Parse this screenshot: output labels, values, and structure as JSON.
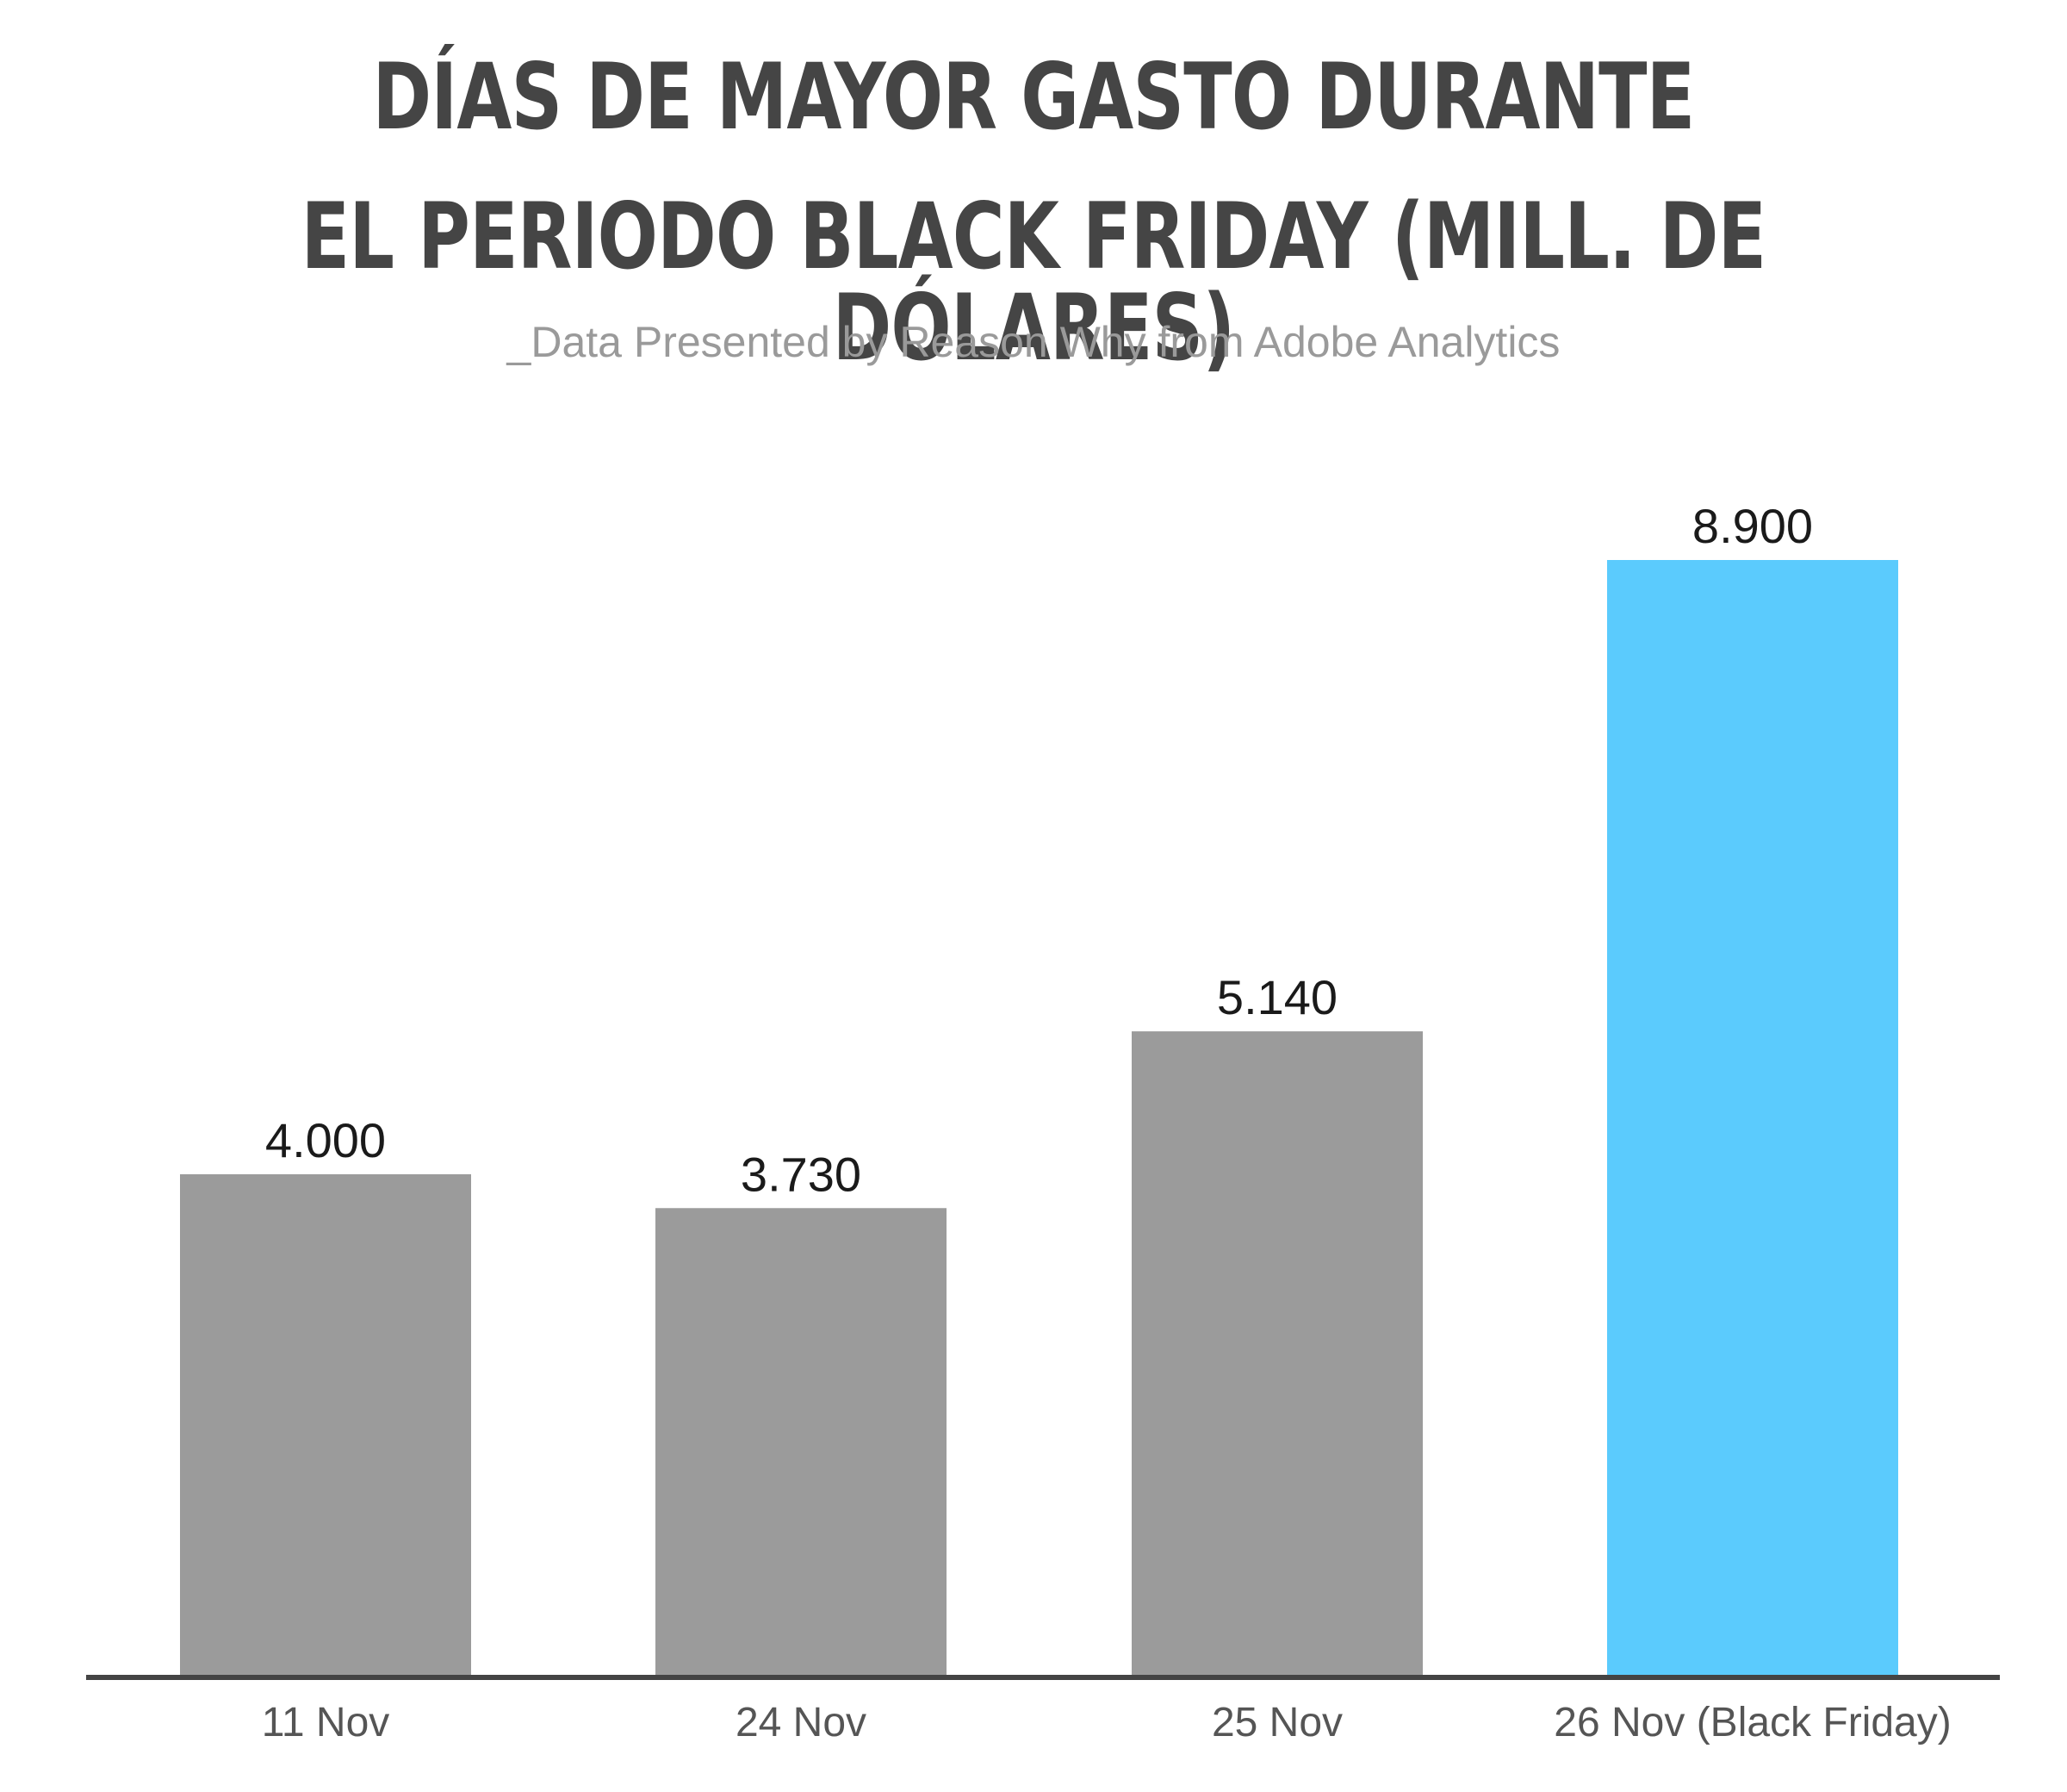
{
  "chart_data": {
    "type": "bar",
    "title_lines": [
      "DÍAS DE MAYOR GASTO DURANTE",
      "EL PERIODO BLACK FRIDAY (MILL. DE DÓLARES)"
    ],
    "subtitle": "_Data Presented by Reason Why from Adobe Analytics",
    "categories": [
      "11 Nov",
      "24 Nov",
      "25 Nov",
      "26 Nov (Black Friday)"
    ],
    "values": [
      4000,
      3730,
      5140,
      8900
    ],
    "value_labels": [
      "4.000",
      "3.730",
      "5.140",
      "8.900"
    ],
    "bar_colors": [
      "#9b9b9b",
      "#9b9b9b",
      "#9b9b9b",
      "#5bcbfd"
    ],
    "ylim": [
      0,
      8900
    ],
    "xlabel": "",
    "ylabel": "",
    "grid": false,
    "legend": "none"
  }
}
